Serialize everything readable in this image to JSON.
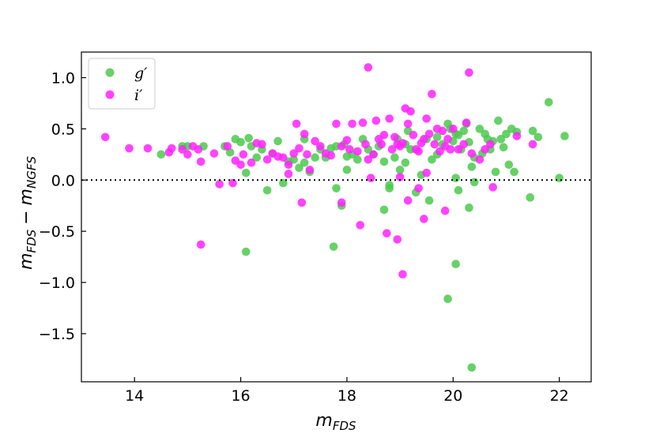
{
  "chart_data": {
    "type": "scatter",
    "title": "",
    "xlabel": "m",
    "xlabel_sub": "FDS",
    "ylabel_a": "m",
    "ylabel_a_sub": "FDS",
    "ylabel_minus": "−",
    "ylabel_b": "m",
    "ylabel_b_sub": "NGFS",
    "xlim": [
      13.0,
      22.6
    ],
    "ylim": [
      -1.97,
      1.25
    ],
    "xticks": [
      14,
      16,
      18,
      20,
      22
    ],
    "xtick_labels": [
      "14",
      "16",
      "18",
      "20",
      "22"
    ],
    "yticks": [
      1.0,
      0.5,
      0.0,
      -0.5,
      -1.0,
      -1.5
    ],
    "ytick_labels": [
      "1.0",
      "0.5",
      "0.0",
      "−0.5",
      "−1.0",
      "−1.5"
    ],
    "reference_line": {
      "y": 0.0,
      "style": "dotted"
    },
    "grid": false,
    "legend_position": "top-left",
    "series": [
      {
        "name": "g′",
        "color": "#4cc94c",
        "points": [
          [
            14.5,
            0.25
          ],
          [
            14.9,
            0.33
          ],
          [
            15.0,
            0.33
          ],
          [
            15.3,
            0.33
          ],
          [
            15.7,
            0.33
          ],
          [
            15.8,
            0.27
          ],
          [
            15.9,
            0.4
          ],
          [
            16.0,
            0.37
          ],
          [
            16.1,
            0.07
          ],
          [
            16.15,
            0.41
          ],
          [
            16.2,
            0.33
          ],
          [
            16.3,
            0.22
          ],
          [
            16.4,
            0.3
          ],
          [
            16.5,
            -0.1
          ],
          [
            16.6,
            0.26
          ],
          [
            16.7,
            0.38
          ],
          [
            16.8,
            -0.03
          ],
          [
            16.9,
            0.18
          ],
          [
            17.0,
            0.2
          ],
          [
            17.1,
            0.12
          ],
          [
            17.2,
            0.4
          ],
          [
            17.3,
            0.08
          ],
          [
            17.4,
            0.22
          ],
          [
            17.5,
            0.3
          ],
          [
            17.6,
            0.22
          ],
          [
            17.7,
            0.31
          ],
          [
            17.8,
            0.33
          ],
          [
            17.8,
            -0.08
          ],
          [
            17.9,
            -0.25
          ],
          [
            17.95,
            0.35
          ],
          [
            18.0,
            0.1
          ],
          [
            18.1,
            0.25
          ],
          [
            18.2,
            0.2
          ],
          [
            18.3,
            0.4
          ],
          [
            18.4,
            0.3
          ],
          [
            18.5,
            0.25
          ],
          [
            18.6,
            0.33
          ],
          [
            18.7,
            0.18
          ],
          [
            18.8,
            -0.05
          ],
          [
            18.8,
            -0.08
          ],
          [
            18.9,
            0.22
          ],
          [
            18.95,
            0.4
          ],
          [
            19.0,
            0.1
          ],
          [
            19.1,
            0.17
          ],
          [
            19.1,
            0.35
          ],
          [
            19.2,
            0.3
          ],
          [
            19.3,
            -0.12
          ],
          [
            19.4,
            0.05
          ],
          [
            19.5,
            0.4
          ],
          [
            19.55,
            -0.2
          ],
          [
            19.6,
            0.2
          ],
          [
            19.7,
            0.42
          ],
          [
            19.8,
            0.35
          ],
          [
            19.9,
            0.55
          ],
          [
            19.95,
            0.5
          ],
          [
            20.0,
            0.38
          ],
          [
            20.05,
            0.45
          ],
          [
            20.05,
            0.02
          ],
          [
            20.1,
            0.44
          ],
          [
            20.1,
            -0.1
          ],
          [
            20.15,
            0.3
          ],
          [
            20.2,
            0.48
          ],
          [
            20.25,
            0.55
          ],
          [
            20.3,
            0.37
          ],
          [
            20.35,
            0.13
          ],
          [
            20.4,
            -0.02
          ],
          [
            20.4,
            0.22
          ],
          [
            20.5,
            0.5
          ],
          [
            20.55,
            0.26
          ],
          [
            20.6,
            0.45
          ],
          [
            20.65,
            0.4
          ],
          [
            20.7,
            0.3
          ],
          [
            20.75,
            0.38
          ],
          [
            20.8,
            0.08
          ],
          [
            20.85,
            0.58
          ],
          [
            20.9,
            0.4
          ],
          [
            20.95,
            0.32
          ],
          [
            21.0,
            0.45
          ],
          [
            21.05,
            0.15
          ],
          [
            21.1,
            0.5
          ],
          [
            21.15,
            0.08
          ],
          [
            21.2,
            0.47
          ],
          [
            21.5,
            0.48
          ],
          [
            21.6,
            0.42
          ],
          [
            21.45,
            -0.17
          ],
          [
            21.8,
            0.76
          ],
          [
            22.0,
            0.02
          ],
          [
            22.1,
            0.43
          ],
          [
            16.1,
            -0.7
          ],
          [
            17.75,
            -0.65
          ],
          [
            18.7,
            -0.29
          ],
          [
            19.9,
            -1.16
          ],
          [
            20.05,
            -0.82
          ],
          [
            20.3,
            -0.27
          ],
          [
            20.35,
            -1.83
          ],
          [
            19.15,
            0.48
          ],
          [
            18.0,
            0.23
          ],
          [
            17.2,
            0.17
          ],
          [
            19.7,
            0.25
          ]
        ]
      },
      {
        "name": "i′",
        "color": "#ff22ff",
        "points": [
          [
            13.45,
            0.42
          ],
          [
            13.9,
            0.31
          ],
          [
            14.25,
            0.31
          ],
          [
            14.65,
            0.27
          ],
          [
            14.7,
            0.31
          ],
          [
            14.9,
            0.3
          ],
          [
            15.0,
            0.25
          ],
          [
            15.1,
            0.33
          ],
          [
            15.2,
            0.3
          ],
          [
            15.25,
            0.18
          ],
          [
            15.5,
            0.26
          ],
          [
            15.75,
            0.33
          ],
          [
            15.9,
            0.19
          ],
          [
            16.0,
            0.15
          ],
          [
            16.05,
            0.25
          ],
          [
            16.2,
            0.17
          ],
          [
            16.3,
            0.36
          ],
          [
            16.4,
            0.35
          ],
          [
            16.5,
            0.2
          ],
          [
            16.6,
            0.26
          ],
          [
            16.7,
            0.23
          ],
          [
            16.8,
            0.22
          ],
          [
            16.9,
            0.15
          ],
          [
            17.0,
            0.26
          ],
          [
            17.05,
            0.55
          ],
          [
            17.1,
            0.31
          ],
          [
            17.2,
            0.45
          ],
          [
            17.25,
            0.25
          ],
          [
            17.3,
            0.1
          ],
          [
            17.4,
            0.38
          ],
          [
            17.5,
            0.33
          ],
          [
            17.6,
            0.26
          ],
          [
            17.7,
            0.24
          ],
          [
            17.8,
            0.55
          ],
          [
            17.9,
            0.33
          ],
          [
            18.0,
            0.39
          ],
          [
            18.05,
            0.3
          ],
          [
            18.1,
            0.55
          ],
          [
            18.2,
            0.28
          ],
          [
            18.3,
            0.56
          ],
          [
            18.35,
            0.35
          ],
          [
            18.4,
            0.2
          ],
          [
            18.5,
            0.25
          ],
          [
            18.55,
            0.58
          ],
          [
            18.6,
            0.4
          ],
          [
            18.65,
            0.35
          ],
          [
            18.7,
            0.44
          ],
          [
            18.8,
            0.6
          ],
          [
            18.85,
            0.3
          ],
          [
            18.9,
            0.42
          ],
          [
            18.95,
            0.35
          ],
          [
            19.0,
            0.33
          ],
          [
            19.05,
            0.36
          ],
          [
            19.1,
            0.7
          ],
          [
            19.15,
            0.55
          ],
          [
            19.2,
            0.67
          ],
          [
            19.25,
            0.44
          ],
          [
            19.3,
            0.3
          ],
          [
            19.35,
            0.28
          ],
          [
            19.4,
            0.36
          ],
          [
            19.45,
            0.4
          ],
          [
            19.5,
            0.6
          ],
          [
            19.55,
            0.45
          ],
          [
            19.6,
            0.84
          ],
          [
            19.65,
            0.35
          ],
          [
            19.7,
            0.5
          ],
          [
            19.75,
            0.28
          ],
          [
            19.8,
            0.48
          ],
          [
            19.85,
            0.33
          ],
          [
            19.9,
            0.4
          ],
          [
            19.95,
            0.3
          ],
          [
            20.0,
            0.5
          ],
          [
            20.1,
            0.3
          ],
          [
            20.2,
            0.35
          ],
          [
            20.25,
            0.56
          ],
          [
            20.3,
            1.05
          ],
          [
            20.35,
            0.26
          ],
          [
            20.5,
            0.2
          ],
          [
            20.6,
            0.3
          ],
          [
            20.7,
            0.35
          ],
          [
            20.75,
            -0.07
          ],
          [
            21.2,
            0.43
          ],
          [
            21.5,
            0.35
          ],
          [
            18.4,
            1.1
          ],
          [
            15.25,
            -0.63
          ],
          [
            15.6,
            -0.04
          ],
          [
            15.85,
            -0.03
          ],
          [
            17.15,
            -0.22
          ],
          [
            17.9,
            -0.22
          ],
          [
            18.25,
            -0.44
          ],
          [
            18.45,
            0.02
          ],
          [
            18.75,
            -0.52
          ],
          [
            18.95,
            -0.58
          ],
          [
            19.05,
            -0.92
          ],
          [
            19.35,
            -0.08
          ],
          [
            19.45,
            -0.38
          ],
          [
            19.85,
            -0.3
          ],
          [
            19.15,
            -0.2
          ],
          [
            16.9,
            0.06
          ],
          [
            19.0,
            0.03
          ],
          [
            19.5,
            0.07
          ]
        ]
      }
    ]
  }
}
